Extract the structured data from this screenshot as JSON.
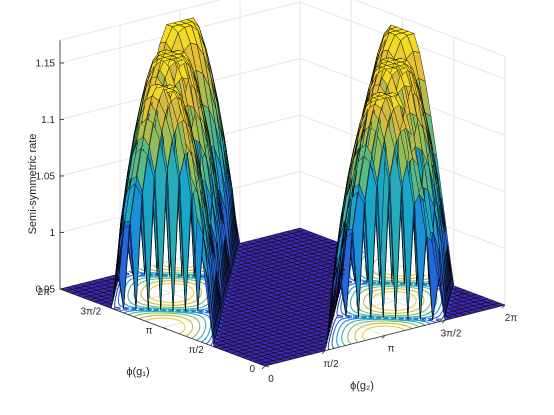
{
  "chart_data": {
    "type": "surface",
    "zlabel": "Semi-symmetric rate",
    "xlabel": "ϕ(g₁)",
    "ylabel": "ϕ(g₂)",
    "xlim": [
      0,
      6.2832
    ],
    "ylim": [
      0,
      6.2832
    ],
    "zlim": [
      0.95,
      1.17
    ],
    "x_ticks": [
      "0",
      "π/2",
      "π",
      "3π/2",
      "2π"
    ],
    "y_ticks": [
      "0",
      "π/2",
      "π",
      "3π/2",
      "2π"
    ],
    "z_ticks": [
      "0.95",
      "1",
      "1.05",
      "1.1",
      "1.15"
    ],
    "grid": true,
    "contour_projection": true,
    "colormap": [
      "#3e26a8",
      "#2f4fd0",
      "#1b7fe6",
      "#1aa6c8",
      "#49b890",
      "#9dbd56",
      "#e1b93a",
      "#f9e51a"
    ],
    "z_max": 1.16,
    "z_min": 0.95,
    "peaks": [
      {
        "x": 0.0,
        "y": 1.5708,
        "z": 1.16
      },
      {
        "x": 1.5708,
        "y": 0.0,
        "z": 1.16
      },
      {
        "x": 1.5708,
        "y": 3.1416,
        "z": 1.16
      },
      {
        "x": 3.1416,
        "y": 1.5708,
        "z": 1.16
      },
      {
        "x": 3.1416,
        "y": 4.7124,
        "z": 1.16
      },
      {
        "x": 4.7124,
        "y": 3.1416,
        "z": 1.16
      },
      {
        "x": 4.7124,
        "y": 6.2832,
        "z": 1.16
      },
      {
        "x": 6.2832,
        "y": 4.7124,
        "z": 1.16
      }
    ],
    "valleys": [
      {
        "x": 1.5708,
        "y": 1.5708,
        "z": 0.95
      },
      {
        "x": 4.7124,
        "y": 4.7124,
        "z": 0.95
      },
      {
        "x": 3.1416,
        "y": 3.1416,
        "z": 0.96
      }
    ]
  }
}
